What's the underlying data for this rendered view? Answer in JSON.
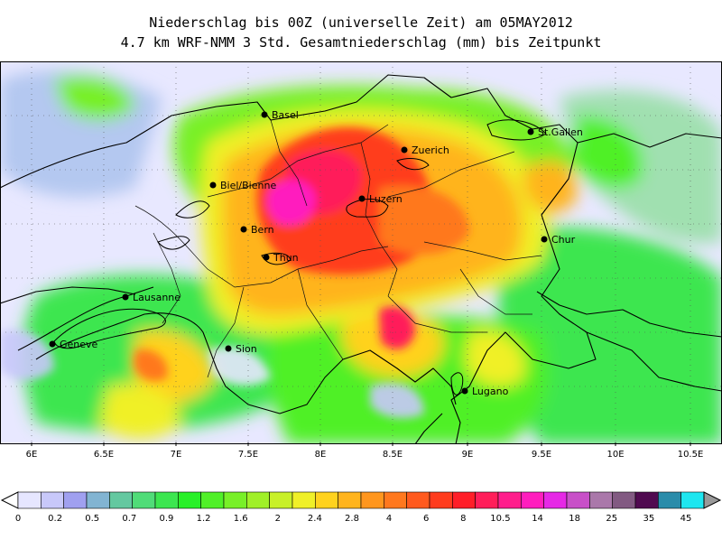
{
  "title_line1": "Niederschlag bis 00Z (universelle Zeit) am 05MAY2012",
  "title_line2": "4.7 km WRF-NMM 3 Std. Gesamtniederschlag (mm) bis Zeitpunkt",
  "longitude_labels": [
    "6E",
    "6.5E",
    "7E",
    "7.5E",
    "8E",
    "8.5E",
    "9E",
    "9.5E",
    "10E",
    "10.5E"
  ],
  "cities": [
    {
      "name": "Basel"
    },
    {
      "name": "St.Gallen"
    },
    {
      "name": "Zuerich"
    },
    {
      "name": "Biel/Bienne"
    },
    {
      "name": "Luzern"
    },
    {
      "name": "Bern"
    },
    {
      "name": "Chur"
    },
    {
      "name": "Thun"
    },
    {
      "name": "Lausanne"
    },
    {
      "name": "Geneve"
    },
    {
      "name": "Sion"
    },
    {
      "name": "Lugano"
    }
  ],
  "colorbar": {
    "labels": [
      "0",
      "0.2",
      "0.5",
      "0.7",
      "0.9",
      "1.2",
      "1.6",
      "2",
      "2.4",
      "2.8",
      "4",
      "6",
      "8",
      "10.5",
      "14",
      "18",
      "25",
      "35",
      "45"
    ],
    "colors": [
      "#e6e6ff",
      "#c8c8fa",
      "#a0a0f0",
      "#82b4d2",
      "#64c8a0",
      "#50dc78",
      "#3ce650",
      "#28f028",
      "#50f028",
      "#78f028",
      "#a0f028",
      "#c8f028",
      "#f0f028",
      "#ffd21e",
      "#ffb41e",
      "#ff961e",
      "#ff781e",
      "#ff5a1e",
      "#ff3c1e",
      "#ff1e28",
      "#ff1e5a",
      "#ff1e8c",
      "#ff1ebe",
      "#e628e6",
      "#c850c8",
      "#aa78aa",
      "#825a82",
      "#500a50",
      "#2a8caa",
      "#1ee6f0"
    ]
  }
}
